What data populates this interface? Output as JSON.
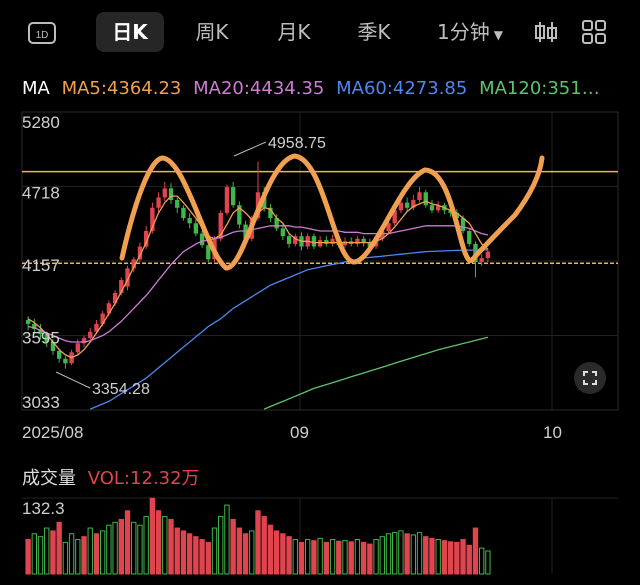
{
  "toolbar": {
    "period_icon_label": "1D",
    "tabs": [
      "日K",
      "周K",
      "月K",
      "季K"
    ],
    "active_tab": "日K",
    "minute_label": "1分钟"
  },
  "ma_legend": {
    "label": "MA",
    "ma5": "MA5:4364.23",
    "ma20": "MA20:4434.35",
    "ma60": "MA60:4273.85",
    "ma120": "MA120:351…"
  },
  "colors": {
    "up": "#e0454f",
    "down": "#3fb84a",
    "ma5": "#f0a050",
    "ma20": "#d07ad6",
    "ma60": "#4f86f0",
    "ma120": "#5cc46a",
    "level": "#f2b54a",
    "drawing": "#f0a050"
  },
  "chart_data": {
    "type": "candlestick",
    "y_axis_ticks": [
      "5280",
      "4718",
      "4157",
      "3595",
      "3033"
    ],
    "ylim": [
      3033,
      5280
    ],
    "x_axis_ticks": [
      "2025/08",
      "09",
      "10"
    ],
    "high_annotation": "4958.75",
    "low_annotation": "3354.28",
    "horizontal_levels": [
      4880,
      4170
    ],
    "candles": [
      [
        3730,
        3700,
        3760,
        3650
      ],
      [
        3700,
        3660,
        3740,
        3620
      ],
      [
        3660,
        3620,
        3700,
        3580
      ],
      [
        3620,
        3560,
        3640,
        3520
      ],
      [
        3560,
        3490,
        3580,
        3460
      ],
      [
        3490,
        3430,
        3510,
        3400
      ],
      [
        3430,
        3395,
        3450,
        3354
      ],
      [
        3395,
        3480,
        3500,
        3380
      ],
      [
        3480,
        3550,
        3580,
        3460
      ],
      [
        3550,
        3590,
        3610,
        3520
      ],
      [
        3590,
        3640,
        3670,
        3570
      ],
      [
        3640,
        3700,
        3730,
        3620
      ],
      [
        3700,
        3780,
        3800,
        3680
      ],
      [
        3780,
        3860,
        3880,
        3760
      ],
      [
        3860,
        3940,
        3960,
        3840
      ],
      [
        3940,
        4040,
        4060,
        3920
      ],
      [
        3990,
        4130,
        4150,
        3960
      ],
      [
        4130,
        4200,
        4220,
        4100
      ],
      [
        4200,
        4300,
        4330,
        4180
      ],
      [
        4300,
        4420,
        4460,
        4280
      ],
      [
        4420,
        4600,
        4640,
        4400
      ],
      [
        4600,
        4680,
        4720,
        4560
      ],
      [
        4680,
        4750,
        4800,
        4650
      ],
      [
        4750,
        4660,
        4790,
        4630
      ],
      [
        4660,
        4600,
        4680,
        4560
      ],
      [
        4600,
        4520,
        4620,
        4500
      ],
      [
        4520,
        4480,
        4560,
        4440
      ],
      [
        4480,
        4400,
        4510,
        4380
      ],
      [
        4400,
        4310,
        4420,
        4290
      ],
      [
        4310,
        4200,
        4330,
        4180
      ],
      [
        4200,
        4360,
        4380,
        4180
      ],
      [
        4360,
        4560,
        4580,
        4340
      ],
      [
        4560,
        4760,
        4780,
        4540
      ],
      [
        4760,
        4620,
        4800,
        4600
      ],
      [
        4620,
        4470,
        4650,
        4440
      ],
      [
        4470,
        4360,
        4500,
        4330
      ],
      [
        4360,
        4520,
        4540,
        4340
      ],
      [
        4520,
        4720,
        4958.75,
        4500
      ],
      [
        4720,
        4600,
        4760,
        4570
      ],
      [
        4600,
        4520,
        4630,
        4490
      ],
      [
        4520,
        4440,
        4550,
        4420
      ],
      [
        4440,
        4380,
        4470,
        4350
      ],
      [
        4380,
        4320,
        4400,
        4290
      ],
      [
        4320,
        4380,
        4400,
        4300
      ],
      [
        4380,
        4300,
        4410,
        4270
      ],
      [
        4300,
        4380,
        4400,
        4280
      ],
      [
        4380,
        4300,
        4400,
        4280
      ],
      [
        4300,
        4350,
        4380,
        4290
      ],
      [
        4350,
        4320,
        4380,
        4300
      ],
      [
        4320,
        4360,
        4390,
        4300
      ],
      [
        4360,
        4310,
        4380,
        4290
      ],
      [
        4310,
        4340,
        4370,
        4290
      ],
      [
        4340,
        4320,
        4370,
        4300
      ],
      [
        4320,
        4360,
        4380,
        4300
      ],
      [
        4360,
        4330,
        4380,
        4300
      ],
      [
        4330,
        4300,
        4360,
        4280
      ],
      [
        4300,
        4360,
        4380,
        4280
      ],
      [
        4360,
        4420,
        4440,
        4340
      ],
      [
        4420,
        4480,
        4500,
        4400
      ],
      [
        4480,
        4580,
        4600,
        4460
      ],
      [
        4580,
        4640,
        4660,
        4560
      ],
      [
        4640,
        4600,
        4680,
        4570
      ],
      [
        4600,
        4660,
        4700,
        4580
      ],
      [
        4660,
        4720,
        4760,
        4640
      ],
      [
        4720,
        4620,
        4740,
        4600
      ],
      [
        4620,
        4580,
        4660,
        4560
      ],
      [
        4580,
        4620,
        4650,
        4560
      ],
      [
        4620,
        4580,
        4640,
        4550
      ],
      [
        4580,
        4560,
        4610,
        4530
      ],
      [
        4560,
        4520,
        4590,
        4500
      ],
      [
        4520,
        4420,
        4540,
        4400
      ],
      [
        4420,
        4320,
        4440,
        4300
      ],
      [
        4320,
        4180,
        4340,
        4060
      ],
      [
        4180,
        4210,
        4240,
        4150
      ],
      [
        4210,
        4260,
        4280,
        4180
      ]
    ],
    "ma5": [
      3740,
      3710,
      3670,
      3620,
      3560,
      3500,
      3460,
      3440,
      3460,
      3500,
      3560,
      3630,
      3700,
      3780,
      3860,
      3950,
      4040,
      4140,
      4230,
      4330,
      4450,
      4560,
      4640,
      4690,
      4690,
      4640,
      4580,
      4520,
      4450,
      4380,
      4360,
      4390,
      4470,
      4560,
      4600,
      4560,
      4510,
      4560,
      4600,
      4590,
      4520,
      4480,
      4400,
      4360,
      4340,
      4340,
      4330,
      4330,
      4330,
      4330,
      4330,
      4330,
      4330,
      4330,
      4330,
      4330,
      4340,
      4360,
      4400,
      4450,
      4510,
      4570,
      4610,
      4630,
      4650,
      4630,
      4620,
      4600,
      4580,
      4560,
      4520,
      4480,
      4400,
      4320,
      4280
    ],
    "ma20": [
      3680,
      3670,
      3650,
      3630,
      3610,
      3590,
      3570,
      3560,
      3560,
      3560,
      3570,
      3590,
      3610,
      3640,
      3680,
      3720,
      3770,
      3820,
      3870,
      3920,
      3980,
      4040,
      4100,
      4160,
      4210,
      4260,
      4290,
      4320,
      4340,
      4350,
      4360,
      4370,
      4390,
      4410,
      4420,
      4420,
      4430,
      4440,
      4450,
      4460,
      4460,
      4460,
      4460,
      4450,
      4450,
      4440,
      4430,
      4420,
      4420,
      4420,
      4420,
      4410,
      4410,
      4410,
      4400,
      4400,
      4400,
      4400,
      4400,
      4410,
      4420,
      4430,
      4440,
      4450,
      4460,
      4460,
      4460,
      4460,
      4460,
      4460,
      4450,
      4440,
      4420,
      4400,
      4390
    ],
    "ma60": [
      null,
      null,
      null,
      null,
      null,
      null,
      null,
      null,
      null,
      null,
      3040,
      3060,
      3080,
      3100,
      3130,
      3160,
      3190,
      3220,
      3250,
      3280,
      3320,
      3360,
      3400,
      3440,
      3480,
      3520,
      3560,
      3600,
      3640,
      3680,
      3710,
      3740,
      3780,
      3820,
      3850,
      3880,
      3910,
      3940,
      3970,
      4000,
      4020,
      4040,
      4060,
      4080,
      4100,
      4120,
      4130,
      4140,
      4150,
      4160,
      4170,
      4180,
      4190,
      4200,
      4210,
      4215,
      4220,
      4225,
      4230,
      4235,
      4240,
      4245,
      4250,
      4255,
      4260,
      4262,
      4264,
      4266,
      4268,
      4270,
      4271,
      4272,
      4273,
      4273,
      4274
    ],
    "ma120": [
      null,
      null,
      null,
      null,
      null,
      null,
      null,
      null,
      null,
      null,
      null,
      null,
      null,
      null,
      null,
      null,
      null,
      null,
      null,
      null,
      null,
      null,
      null,
      null,
      null,
      null,
      null,
      null,
      null,
      null,
      null,
      null,
      null,
      null,
      null,
      null,
      null,
      null,
      3040,
      3060,
      3080,
      3100,
      3120,
      3140,
      3160,
      3180,
      3200,
      3215,
      3230,
      3245,
      3260,
      3275,
      3290,
      3305,
      3320,
      3335,
      3350,
      3365,
      3380,
      3395,
      3410,
      3425,
      3440,
      3455,
      3470,
      3485,
      3500,
      3512,
      3524,
      3536,
      3548,
      3560,
      3572,
      3584,
      3596
    ],
    "volume_title": "成交量",
    "volume_label": "VOL:12.32万",
    "volume_max_label": "132.3",
    "volume_max": 132.3,
    "volumes": [
      60,
      70,
      65,
      80,
      75,
      90,
      55,
      70,
      60,
      65,
      80,
      70,
      75,
      85,
      90,
      95,
      110,
      90,
      85,
      100,
      132,
      110,
      100,
      95,
      80,
      75,
      70,
      65,
      60,
      55,
      80,
      100,
      120,
      95,
      80,
      70,
      75,
      110,
      100,
      85,
      75,
      70,
      65,
      60,
      55,
      60,
      58,
      62,
      55,
      60,
      57,
      58,
      56,
      60,
      55,
      52,
      60,
      65,
      70,
      72,
      75,
      70,
      68,
      72,
      65,
      62,
      60,
      58,
      56,
      55,
      60,
      50,
      80,
      45,
      40
    ],
    "volume_up": [
      1,
      0,
      0,
      0,
      1,
      1,
      0,
      0,
      0,
      1,
      0,
      1,
      0,
      0,
      0,
      1,
      1,
      0,
      0,
      0,
      1,
      1,
      0,
      1,
      1,
      1,
      1,
      1,
      1,
      1,
      0,
      0,
      0,
      1,
      1,
      1,
      0,
      1,
      1,
      1,
      1,
      1,
      1,
      0,
      1,
      0,
      1,
      0,
      1,
      0,
      1,
      0,
      1,
      0,
      1,
      1,
      0,
      0,
      0,
      0,
      0,
      1,
      0,
      0,
      1,
      1,
      0,
      1,
      1,
      1,
      1,
      1,
      1,
      0,
      0
    ]
  }
}
